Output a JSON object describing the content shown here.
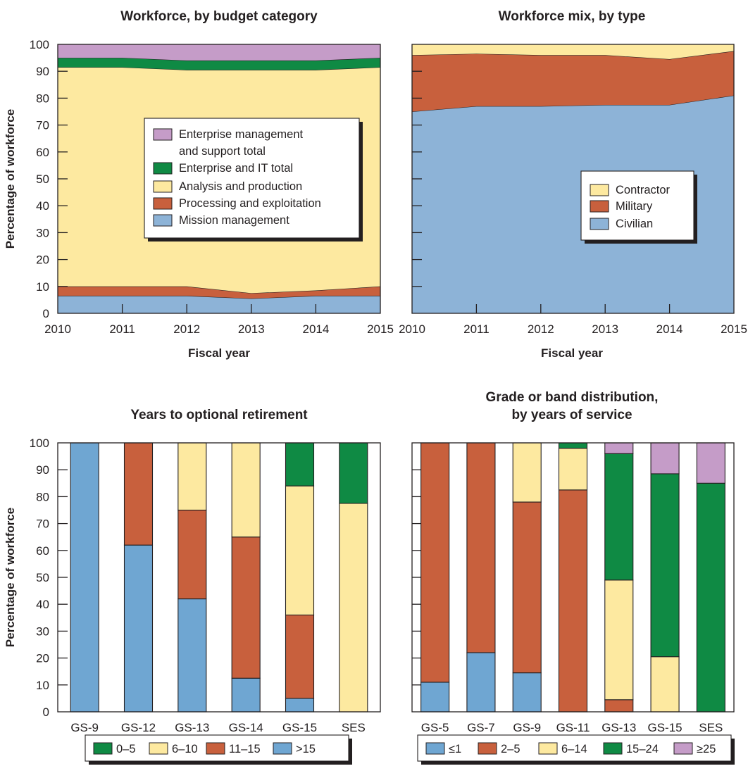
{
  "colors": {
    "purple": "#c59cc8",
    "green": "#0f8a44",
    "yellow": "#fde9a0",
    "orange": "#c8603d",
    "blue": "#8db3d7",
    "bar_blue": "#6fa6d2"
  },
  "chart_data": [
    {
      "type": "area",
      "stacked": true,
      "title": "Workforce, by budget category",
      "xlabel": "Fiscal year",
      "ylabel": "Percentage of workforce",
      "x": [
        "2010",
        "2011",
        "2012",
        "2013",
        "2014",
        "2015"
      ],
      "ylim": [
        0,
        100
      ],
      "yticks": [
        "0",
        "10",
        "20",
        "30",
        "40",
        "50",
        "60",
        "70",
        "80",
        "90",
        "100"
      ],
      "series": [
        {
          "name": "Mission management",
          "color": "#8db3d7",
          "values": [
            6.5,
            6.5,
            6.5,
            5.5,
            6.5,
            6.5
          ]
        },
        {
          "name": "Processing and exploitation",
          "color": "#c8603d",
          "values": [
            3.5,
            3.5,
            3.5,
            2.0,
            2.0,
            3.5
          ]
        },
        {
          "name": "Analysis and production",
          "color": "#fde9a0",
          "values": [
            81.5,
            81.5,
            80.5,
            83.0,
            82.0,
            81.5
          ]
        },
        {
          "name": "Enterprise and IT total",
          "color": "#0f8a44",
          "values": [
            3.5,
            3.5,
            3.5,
            3.5,
            3.5,
            3.5
          ]
        },
        {
          "name": "Enterprise management and support total",
          "color": "#c59cc8",
          "values": [
            5.0,
            5.0,
            6.0,
            6.0,
            6.0,
            5.0
          ]
        }
      ],
      "legend": {
        "position": "center",
        "entries": [
          {
            "label": "Enterprise management",
            "label2": "and support total",
            "color": "#c59cc8"
          },
          {
            "label": "Enterprise and IT total",
            "color": "#0f8a44"
          },
          {
            "label": "Analysis and production",
            "color": "#fde9a0"
          },
          {
            "label": "Processing and exploitation",
            "color": "#c8603d"
          },
          {
            "label": "Mission management",
            "color": "#8db3d7"
          }
        ]
      }
    },
    {
      "type": "area",
      "stacked": true,
      "title": "Workforce mix, by type",
      "xlabel": "Fiscal year",
      "ylabel": "",
      "x": [
        "2010",
        "2011",
        "2012",
        "2013",
        "2014",
        "2015"
      ],
      "ylim": [
        0,
        100
      ],
      "series": [
        {
          "name": "Civilian",
          "color": "#8db3d7",
          "values": [
            75.0,
            77.0,
            77.0,
            77.5,
            77.5,
            81.0
          ]
        },
        {
          "name": "Military",
          "color": "#c8603d",
          "values": [
            21.0,
            19.5,
            19.0,
            18.5,
            17.0,
            16.5
          ]
        },
        {
          "name": "Contractor",
          "color": "#fde9a0",
          "values": [
            4.0,
            3.5,
            4.0,
            4.0,
            5.5,
            2.5
          ]
        }
      ],
      "legend": {
        "position": "center-right",
        "entries": [
          {
            "label": "Contractor",
            "color": "#fde9a0"
          },
          {
            "label": "Military",
            "color": "#c8603d"
          },
          {
            "label": "Civilian",
            "color": "#8db3d7"
          }
        ]
      }
    },
    {
      "type": "bar",
      "stacked": true,
      "title": "Years to optional retirement",
      "xlabel": "",
      "ylabel": "Percentage of workforce",
      "categories": [
        "GS-9",
        "GS-12",
        "GS-13",
        "GS-14",
        "GS-15",
        "SES"
      ],
      "ylim": [
        0,
        100
      ],
      "yticks": [
        "0",
        "10",
        "20",
        "30",
        "40",
        "50",
        "60",
        "70",
        "80",
        "90",
        "100"
      ],
      "series": [
        {
          "name": ">15",
          "color": "#6fa6d2",
          "values": [
            100,
            62,
            42,
            12.5,
            5,
            0
          ]
        },
        {
          "name": "11–15",
          "color": "#c8603d",
          "values": [
            0,
            38,
            33,
            52.5,
            31,
            0
          ]
        },
        {
          "name": "6–10",
          "color": "#fde9a0",
          "values": [
            0,
            0,
            25,
            35,
            48,
            77.5
          ]
        },
        {
          "name": "0–5",
          "color": "#0f8a44",
          "values": [
            0,
            0,
            0,
            0,
            16,
            22.5
          ]
        }
      ],
      "legend": {
        "position": "bottom",
        "entries": [
          {
            "label": "0–5",
            "color": "#0f8a44"
          },
          {
            "label": "6–10",
            "color": "#fde9a0"
          },
          {
            "label": "11–15",
            "color": "#c8603d"
          },
          {
            "label": ">15",
            "color": "#6fa6d2"
          }
        ]
      }
    },
    {
      "type": "bar",
      "stacked": true,
      "title": "Grade or band distribution,",
      "title2": "by years of service",
      "xlabel": "",
      "ylabel": "",
      "categories": [
        "GS-5",
        "GS-7",
        "GS-9",
        "GS-11",
        "GS-13",
        "GS-15",
        "SES"
      ],
      "ylim": [
        0,
        100
      ],
      "series": [
        {
          "name": "≤1",
          "color": "#6fa6d2",
          "values": [
            11,
            22,
            14.5,
            0,
            0,
            0,
            0
          ]
        },
        {
          "name": "2–5",
          "color": "#c8603d",
          "values": [
            89,
            78,
            63.5,
            82.5,
            4.5,
            0,
            0
          ]
        },
        {
          "name": "6–14",
          "color": "#fde9a0",
          "values": [
            0,
            0,
            22,
            15.5,
            44.5,
            20.5,
            0
          ]
        },
        {
          "name": "15–24",
          "color": "#0f8a44",
          "values": [
            0,
            0,
            0,
            2,
            47,
            68,
            85
          ]
        },
        {
          "name": "≥25",
          "color": "#c59cc8",
          "values": [
            0,
            0,
            0,
            0,
            4,
            11.5,
            15
          ]
        }
      ],
      "legend": {
        "position": "bottom",
        "entries": [
          {
            "label": "≤1",
            "color": "#6fa6d2"
          },
          {
            "label": "2–5",
            "color": "#c8603d"
          },
          {
            "label": "6–14",
            "color": "#fde9a0"
          },
          {
            "label": "15–24",
            "color": "#0f8a44"
          },
          {
            "label": "≥25",
            "color": "#c59cc8"
          }
        ]
      }
    }
  ]
}
